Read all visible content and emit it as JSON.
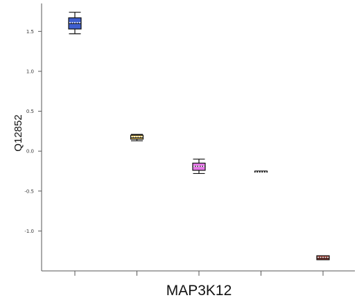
{
  "chart_data": {
    "type": "box",
    "title": "",
    "xlabel": "MAP3K12",
    "ylabel": "Q12852",
    "ylim": [
      -1.5,
      1.85
    ],
    "yticks": [
      -1.0,
      -0.5,
      0.0,
      0.5,
      1.0,
      1.5
    ],
    "ytick_labels": [
      "-1.0",
      "-0.5",
      "0.0",
      "0.5",
      "1.0",
      "1.5"
    ],
    "grid": false,
    "categories": [
      "",
      "",
      "",
      "",
      ""
    ],
    "boxes": [
      {
        "min": 1.47,
        "q1": 1.53,
        "median": 1.6,
        "mean": 1.61,
        "q3": 1.67,
        "max": 1.74,
        "color": "#3f5fcf"
      },
      {
        "min": 0.13,
        "q1": 0.15,
        "median": 0.17,
        "mean": 0.18,
        "q3": 0.2,
        "max": 0.21,
        "color": "#f1cd5f"
      },
      {
        "min": -0.28,
        "q1": -0.24,
        "median": -0.19,
        "mean": -0.19,
        "q3": -0.15,
        "max": -0.1,
        "color": "#e678e9"
      },
      {
        "min": -0.26,
        "q1": -0.26,
        "median": -0.26,
        "mean": -0.26,
        "q3": -0.25,
        "max": -0.25,
        "color": "#a0a0a0"
      },
      {
        "min": -1.36,
        "q1": -1.36,
        "median": -1.34,
        "mean": -1.33,
        "q3": -1.31,
        "max": -1.31,
        "color": "#a83c32"
      }
    ]
  }
}
